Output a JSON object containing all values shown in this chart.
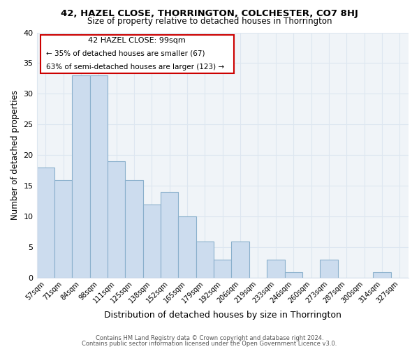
{
  "title1": "42, HAZEL CLOSE, THORRINGTON, COLCHESTER, CO7 8HJ",
  "title2": "Size of property relative to detached houses in Thorrington",
  "xlabel": "Distribution of detached houses by size in Thorrington",
  "ylabel": "Number of detached properties",
  "bar_labels": [
    "57sqm",
    "71sqm",
    "84sqm",
    "98sqm",
    "111sqm",
    "125sqm",
    "138sqm",
    "152sqm",
    "165sqm",
    "179sqm",
    "192sqm",
    "206sqm",
    "219sqm",
    "233sqm",
    "246sqm",
    "260sqm",
    "273sqm",
    "287sqm",
    "300sqm",
    "314sqm",
    "327sqm"
  ],
  "bar_values": [
    18,
    16,
    33,
    33,
    19,
    16,
    12,
    14,
    10,
    6,
    3,
    6,
    0,
    3,
    1,
    0,
    3,
    0,
    0,
    1,
    0
  ],
  "bar_color": "#ccdcee",
  "bar_edge_color": "#8ab0cc",
  "ylim": [
    0,
    40
  ],
  "yticks": [
    0,
    5,
    10,
    15,
    20,
    25,
    30,
    35,
    40
  ],
  "annotation_title": "42 HAZEL CLOSE: 99sqm",
  "annotation_line1": "← 35% of detached houses are smaller (67)",
  "annotation_line2": "63% of semi-detached houses are larger (123) →",
  "annotation_box_color": "#ffffff",
  "annotation_box_edge": "#cc0000",
  "footer1": "Contains HM Land Registry data © Crown copyright and database right 2024.",
  "footer2": "Contains public sector information licensed under the Open Government Licence v3.0.",
  "background_color": "#ffffff",
  "grid_color": "#dde6f0",
  "axis_bg_color": "#f0f4f8"
}
